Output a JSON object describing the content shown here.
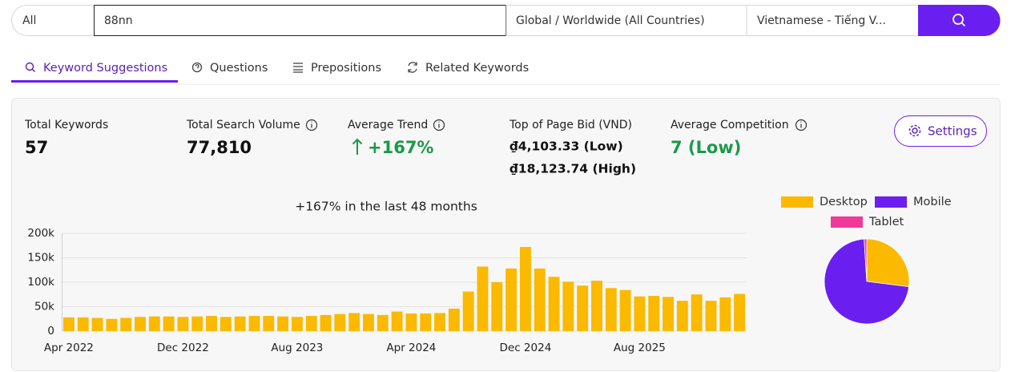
{
  "search": {
    "scope": "All",
    "query": "88nn",
    "location": "Global / Worldwide (All Countries)",
    "language": "Vietnamese - Tiếng V..."
  },
  "tabs": [
    "Keyword Suggestions",
    "Questions",
    "Prepositions",
    "Related Keywords"
  ],
  "stats": {
    "total_keywords": {
      "label": "Total Keywords",
      "value": "57"
    },
    "total_search_volume": {
      "label": "Total Search Volume",
      "value": "77,810"
    },
    "average_trend": {
      "label": "Average Trend",
      "value": "+167%"
    },
    "top_of_page_bid": {
      "label": "Top of Page Bid (VND)",
      "low": "₫4,103.33 (Low)",
      "high": "₫18,123.74 (High)"
    },
    "average_competition": {
      "label": "Average Competition",
      "value": "7 (Low)"
    }
  },
  "settings_button": "Settings",
  "chart_data": [
    {
      "type": "bar",
      "title": "+167% in the last 48 months",
      "categories": [
        "Apr 2022",
        null,
        null,
        null,
        null,
        null,
        null,
        null,
        "Dec 2022",
        null,
        null,
        null,
        null,
        null,
        null,
        null,
        "Aug 2023",
        null,
        null,
        null,
        null,
        null,
        null,
        null,
        "Apr 2024",
        null,
        null,
        null,
        null,
        null,
        null,
        null,
        "Dec 2024",
        null,
        null,
        null,
        null,
        null,
        null,
        null,
        "Aug 2025",
        null,
        null,
        null,
        null,
        null,
        null,
        null
      ],
      "values": [
        28000,
        28000,
        27000,
        25000,
        27000,
        29000,
        30000,
        30000,
        29000,
        30000,
        31000,
        29000,
        30000,
        31000,
        31000,
        30000,
        29000,
        31000,
        33000,
        35000,
        37000,
        35000,
        33000,
        40000,
        36000,
        36000,
        37000,
        46000,
        81000,
        132000,
        100000,
        128000,
        172000,
        128000,
        111000,
        101000,
        93000,
        103000,
        88000,
        84000,
        71000,
        72000,
        70000,
        62000,
        75000,
        62000,
        69000,
        76000
      ],
      "color": "#fbb900",
      "ylim": [
        0,
        200000
      ],
      "yticks": [
        0,
        {
          "value": 50000,
          "label": "50k"
        },
        {
          "value": 100000,
          "label": "100k"
        },
        {
          "value": 150000,
          "label": "150k"
        },
        {
          "value": 200000,
          "label": "200k"
        }
      ],
      "grid": true
    },
    {
      "type": "pie",
      "categories": [
        "Desktop",
        "Mobile",
        "Tablet"
      ],
      "values": [
        27,
        72,
        1
      ],
      "colors": [
        "#fbb900",
        "#6a1ff0",
        "#f0399a"
      ]
    }
  ]
}
